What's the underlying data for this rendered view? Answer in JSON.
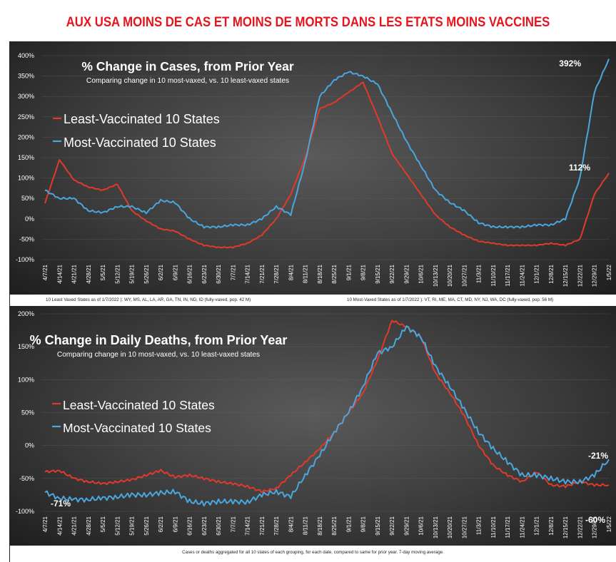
{
  "headline": "AUX USA MOINS DE CAS ET MOINS DE MORTS DANS LES ETATS MOINS VACCINES",
  "colors": {
    "headline": "#e8141c",
    "least": "#e03a2a",
    "most": "#4aa6dd",
    "text": "#ffffff"
  },
  "captions": {
    "least_states": "10 Least Vaxed States as of 1/7/2022 ): WY, MS, AL, LA, AR, GA, TN, IN, ND, ID (fully-vaxed, pop. 42 M)",
    "most_states": "10 Most-Vaxed  States as of 1/7/2022 ): VT, RI, ME, MA, CT, MD, NY, NJ, WA, DC (fully-vaxed, pop. 56 M)",
    "footer": "Cases or deaths aggregated for all 10 states of each grouping, for each date, compared to same for prior year. 7-day moving average."
  },
  "chart_data": [
    {
      "type": "line",
      "title": "% Change in Cases, from Prior Year",
      "subtitle": "Comparing change in 10 most-vaxed, vs. 10 least-vaxed states",
      "xlabel": "",
      "ylabel": "",
      "ylim": [
        -100,
        400
      ],
      "yticks": [
        "400%",
        "350%",
        "300%",
        "250%",
        "200%",
        "150%",
        "100%",
        "50%",
        "0%",
        "-50%",
        "-100%"
      ],
      "ytick_values": [
        400,
        350,
        300,
        250,
        200,
        150,
        100,
        50,
        0,
        -50,
        -100
      ],
      "grid": true,
      "legend_position": "top-left",
      "categories": [
        "4/7/21",
        "4/14/21",
        "4/21/21",
        "4/28/21",
        "5/5/21",
        "5/12/21",
        "5/19/21",
        "5/26/21",
        "6/2/21",
        "6/9/21",
        "6/16/21",
        "6/23/21",
        "6/30/21",
        "7/7/21",
        "7/14/21",
        "7/21/21",
        "7/28/21",
        "8/4/21",
        "8/11/21",
        "8/18/21",
        "8/25/21",
        "9/1/21",
        "9/8/21",
        "9/15/21",
        "9/22/21",
        "9/29/21",
        "10/6/21",
        "10/13/21",
        "10/20/21",
        "10/27/21",
        "11/3/21",
        "11/10/21",
        "11/17/21",
        "11/24/21",
        "12/1/21",
        "12/8/21",
        "12/15/21",
        "12/22/21",
        "12/29/21",
        "1/5/22"
      ],
      "series": [
        {
          "name": "Least-Vaccinated 10 States",
          "color": "#e03a2a",
          "values": [
            38,
            145,
            95,
            78,
            70,
            85,
            20,
            -5,
            -25,
            -30,
            -50,
            -65,
            -70,
            -70,
            -60,
            -40,
            0,
            60,
            150,
            270,
            285,
            310,
            335,
            250,
            160,
            110,
            60,
            10,
            -20,
            -40,
            -55,
            -60,
            -65,
            -65,
            -65,
            -60,
            -65,
            -50,
            60,
            112
          ]
        },
        {
          "name": "Most-Vaccinated 10 States",
          "color": "#4aa6dd",
          "values": [
            70,
            50,
            50,
            20,
            15,
            30,
            30,
            15,
            45,
            40,
            0,
            -20,
            -20,
            -15,
            -15,
            0,
            30,
            10,
            140,
            300,
            340,
            360,
            350,
            330,
            260,
            190,
            130,
            70,
            40,
            20,
            -10,
            -20,
            -20,
            -20,
            -15,
            -15,
            0,
            100,
            310,
            392
          ]
        }
      ],
      "annotations": [
        {
          "text": "392%",
          "series": "Most-Vaccinated 10 States",
          "at": "1/5/22"
        },
        {
          "text": "112%",
          "series": "Least-Vaccinated 10 States",
          "at": "1/5/22"
        }
      ]
    },
    {
      "type": "line",
      "title": "% Change in Daily Deaths, from Prior Year",
      "subtitle": "Comparing change in 10 most-vaxed, vs. 10 least-vaxed states",
      "xlabel": "",
      "ylabel": "",
      "ylim": [
        -100,
        200
      ],
      "yticks": [
        "200%",
        "150%",
        "100%",
        "50%",
        "0%",
        "-50%",
        "-100%"
      ],
      "ytick_values": [
        200,
        150,
        100,
        50,
        0,
        -50,
        -100
      ],
      "grid": true,
      "legend_position": "left",
      "categories": [
        "4/7/21",
        "4/14/21",
        "4/21/21",
        "4/28/21",
        "5/5/21",
        "5/12/21",
        "5/19/21",
        "5/26/21",
        "6/2/21",
        "6/9/21",
        "6/16/21",
        "6/23/21",
        "6/30/21",
        "7/7/21",
        "7/14/21",
        "7/21/21",
        "7/28/21",
        "8/4/21",
        "8/11/21",
        "8/18/21",
        "8/25/21",
        "9/1/21",
        "9/8/21",
        "9/15/21",
        "9/22/21",
        "9/29/21",
        "10/6/21",
        "10/13/21",
        "10/20/21",
        "10/27/21",
        "11/3/21",
        "11/10/21",
        "11/17/21",
        "11/24/21",
        "12/1/21",
        "12/8/21",
        "12/15/21",
        "12/22/21",
        "12/29/21",
        "1/5/22"
      ],
      "series": [
        {
          "name": "Least-Vaccinated 10 States",
          "color": "#e03a2a",
          "values": [
            -40,
            -38,
            -50,
            -55,
            -58,
            -55,
            -52,
            -45,
            -38,
            -48,
            -45,
            -50,
            -55,
            -58,
            -62,
            -70,
            -65,
            -45,
            -25,
            -5,
            20,
            50,
            80,
            130,
            190,
            180,
            165,
            110,
            80,
            45,
            0,
            -30,
            -45,
            -55,
            -40,
            -60,
            -62,
            -55,
            -60,
            -60
          ]
        },
        {
          "name": "Most-Vaccinated 10 States",
          "color": "#4aa6dd",
          "values": [
            -71,
            -80,
            -82,
            -82,
            -80,
            -78,
            -75,
            -75,
            -72,
            -70,
            -85,
            -88,
            -85,
            -85,
            -86,
            -75,
            -70,
            -78,
            -45,
            -15,
            20,
            50,
            90,
            140,
            150,
            180,
            165,
            120,
            90,
            55,
            20,
            -5,
            -25,
            -45,
            -45,
            -50,
            -55,
            -55,
            -45,
            -21
          ]
        }
      ],
      "annotations": [
        {
          "text": "-71%",
          "series": "Most-Vaccinated 10 States",
          "at": "4/7/21"
        },
        {
          "text": "-21%",
          "series": "Most-Vaccinated 10 States",
          "at": "1/5/22"
        },
        {
          "text": "-60%",
          "series": "Least-Vaccinated 10 States",
          "at": "1/5/22"
        }
      ]
    }
  ]
}
